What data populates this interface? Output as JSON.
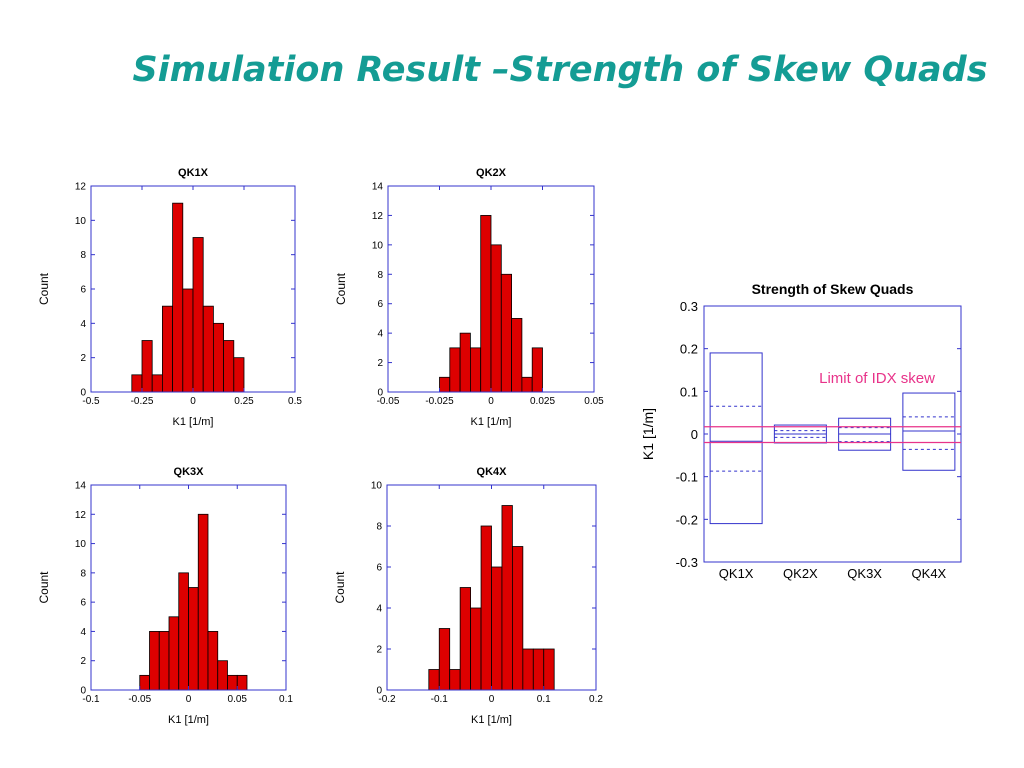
{
  "slide": {
    "title": "Simulation Result –Strength of Skew Quads"
  },
  "colors": {
    "title": "#149c94",
    "bar_fill": "#dd0000",
    "frame": "#3333cc",
    "limit_line": "#e8338a"
  },
  "chart_data": [
    {
      "type": "bar",
      "title": "QK1X",
      "xlabel": "K1 [1/m]",
      "ylabel": "Count",
      "xlim": [
        -0.5,
        0.5
      ],
      "ylim": [
        0,
        12
      ],
      "xticks": [
        -0.5,
        -0.25,
        0,
        0.25,
        0.5
      ],
      "xtick_labels": [
        "-0.5",
        "-0.25",
        "0",
        "0.25",
        "0.5"
      ],
      "yticks": [
        0,
        2,
        4,
        6,
        8,
        10,
        12
      ],
      "bin_edges": [
        -0.3,
        -0.25,
        -0.2,
        -0.15,
        -0.1,
        -0.05,
        0,
        0.05,
        0.1,
        0.15,
        0.2,
        0.25
      ],
      "counts": [
        1,
        3,
        1,
        5,
        11,
        6,
        9,
        5,
        4,
        3,
        2
      ]
    },
    {
      "type": "bar",
      "title": "QK2X",
      "xlabel": "K1 [1/m]",
      "ylabel": "Count",
      "xlim": [
        -0.05,
        0.05
      ],
      "ylim": [
        0,
        14
      ],
      "xticks": [
        -0.05,
        -0.025,
        0,
        0.025,
        0.05
      ],
      "xtick_labels": [
        "-0.05",
        "-0.025",
        "0",
        "0.025",
        "0.05"
      ],
      "yticks": [
        0,
        2,
        4,
        6,
        8,
        10,
        12,
        14
      ],
      "bin_edges": [
        -0.025,
        -0.02,
        -0.015,
        -0.01,
        -0.005,
        0,
        0.005,
        0.01,
        0.015,
        0.02,
        0.025
      ],
      "counts": [
        1,
        3,
        4,
        3,
        12,
        10,
        8,
        5,
        1,
        3
      ]
    },
    {
      "type": "bar",
      "title": "QK3X",
      "xlabel": "K1 [1/m]",
      "ylabel": "Count",
      "xlim": [
        -0.1,
        0.1
      ],
      "ylim": [
        0,
        14
      ],
      "xticks": [
        -0.1,
        -0.05,
        0,
        0.05,
        0.1
      ],
      "xtick_labels": [
        "-0.1",
        "-0.05",
        "0",
        "0.05",
        "0.1"
      ],
      "yticks": [
        0,
        2,
        4,
        6,
        8,
        10,
        12,
        14
      ],
      "bin_edges": [
        -0.05,
        -0.04,
        -0.03,
        -0.02,
        -0.01,
        0,
        0.01,
        0.02,
        0.03,
        0.04,
        0.05,
        0.06
      ],
      "counts": [
        1,
        4,
        4,
        5,
        8,
        7,
        12,
        4,
        2,
        1,
        1
      ]
    },
    {
      "type": "bar",
      "title": "QK4X",
      "xlabel": "K1 [1/m]",
      "ylabel": "Count",
      "xlim": [
        -0.2,
        0.2
      ],
      "ylim": [
        0,
        10
      ],
      "xticks": [
        -0.2,
        -0.1,
        0,
        0.1,
        0.2
      ],
      "xtick_labels": [
        "-0.2",
        "-0.1",
        "0",
        "0.1",
        "0.2"
      ],
      "yticks": [
        0,
        2,
        4,
        6,
        8,
        10
      ],
      "bin_edges": [
        -0.12,
        -0.1,
        -0.08,
        -0.06,
        -0.04,
        -0.02,
        0,
        0.02,
        0.04,
        0.06,
        0.08,
        0.1,
        0.12
      ],
      "counts": [
        1,
        3,
        1,
        5,
        4,
        8,
        6,
        9,
        7,
        2,
        2,
        2
      ]
    },
    {
      "type": "box",
      "title": "Strength of Skew Quads",
      "ylabel": "K1 [1/m]",
      "ylim": [
        -0.3,
        0.3
      ],
      "yticks": [
        -0.3,
        -0.2,
        -0.1,
        0,
        0.1,
        0.2,
        0.3
      ],
      "categories": [
        "QK1X",
        "QK2X",
        "QK3X",
        "QK4X"
      ],
      "boxes": [
        {
          "min": -0.21,
          "max": 0.19,
          "mean": -0.017,
          "sd_low": -0.087,
          "sd_high": 0.065
        },
        {
          "min": -0.021,
          "max": 0.021,
          "mean": 0.0,
          "sd_low": -0.008,
          "sd_high": 0.008
        },
        {
          "min": -0.038,
          "max": 0.037,
          "mean": 0.0,
          "sd_low": -0.018,
          "sd_high": 0.015
        },
        {
          "min": -0.085,
          "max": 0.096,
          "mean": 0.007,
          "sd_low": -0.036,
          "sd_high": 0.04
        }
      ],
      "limit_lines": [
        0.017,
        -0.02
      ],
      "annotation": "Limit of IDX skew"
    }
  ]
}
